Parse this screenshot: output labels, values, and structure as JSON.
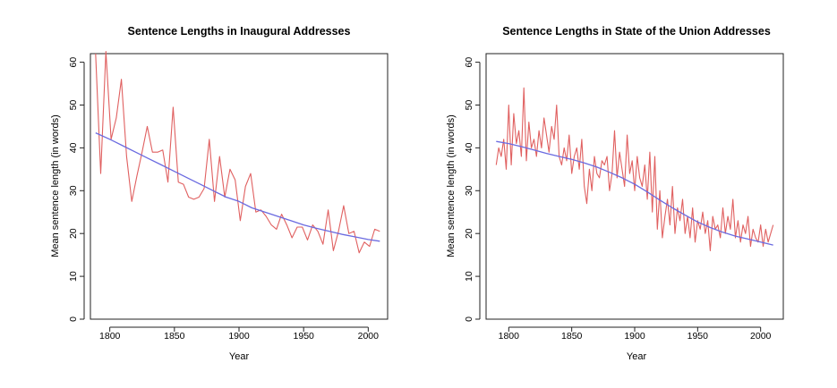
{
  "colors": {
    "raw_series": "#e06060",
    "trend": "#6a6ae0",
    "frame": "#222222",
    "background": "#ffffff"
  },
  "chart_data": [
    {
      "type": "line",
      "title": "Sentence Lengths in Inaugural Addresses",
      "xlabel": "Year",
      "ylabel": "Mean sentence length (in words)",
      "xlim": [
        1785,
        2015
      ],
      "ylim": [
        0,
        62
      ],
      "xticks": [
        1800,
        1850,
        1900,
        1950,
        2000
      ],
      "yticks": [
        0,
        10,
        20,
        30,
        40,
        50,
        60
      ],
      "grid": false,
      "legend": "none",
      "series": [
        {
          "x": [
            1789,
            1793,
            1797,
            1801,
            1805,
            1809,
            1813,
            1817,
            1821,
            1825,
            1829,
            1833,
            1837,
            1841,
            1845,
            1849,
            1853,
            1857,
            1861,
            1865,
            1869,
            1873,
            1877,
            1881,
            1885,
            1889,
            1893,
            1897,
            1901,
            1905,
            1909,
            1913,
            1917,
            1921,
            1925,
            1929,
            1933,
            1937,
            1941,
            1945,
            1949,
            1953,
            1957,
            1961,
            1965,
            1969,
            1973,
            1977,
            1981,
            1985,
            1989,
            1993,
            1997,
            2001,
            2005,
            2009
          ],
          "y": [
            62.0,
            34.0,
            62.5,
            42.0,
            47.0,
            56.0,
            38.0,
            27.5,
            33.5,
            39.0,
            45.0,
            39.0,
            39.0,
            39.5,
            32.0,
            49.5,
            32.0,
            31.5,
            28.5,
            28.0,
            28.5,
            30.5,
            42.0,
            27.5,
            38.0,
            28.5,
            35.0,
            32.5,
            23.0,
            31.0,
            34.0,
            25.0,
            25.5,
            24.0,
            22.0,
            21.0,
            24.5,
            22.0,
            19.0,
            21.5,
            21.5,
            18.5,
            22.0,
            20.5,
            17.5,
            25.5,
            16.0,
            20.5,
            26.5,
            20.0,
            20.5,
            15.5,
            18.0,
            17.0,
            21.0,
            20.5
          ]
        },
        {
          "x": [
            1789,
            1800,
            1810,
            1820,
            1830,
            1840,
            1850,
            1860,
            1870,
            1880,
            1890,
            1900,
            1910,
            1920,
            1930,
            1940,
            1950,
            1960,
            1970,
            1980,
            1990,
            2000,
            2009
          ],
          "y": [
            43.5,
            42.0,
            40.5,
            39.0,
            37.5,
            36.0,
            34.5,
            33.0,
            31.5,
            30.0,
            28.5,
            27.5,
            26.0,
            25.0,
            24.0,
            23.0,
            22.0,
            21.2,
            20.5,
            19.8,
            19.2,
            18.6,
            18.2
          ]
        }
      ]
    },
    {
      "type": "line",
      "title": "Sentence Lengths in State of the Union Addresses",
      "xlabel": "Year",
      "ylabel": "Mean sentence length (in words)",
      "xlim": [
        1782,
        2018
      ],
      "ylim": [
        0,
        62
      ],
      "xticks": [
        1800,
        1850,
        1900,
        1950,
        2000
      ],
      "yticks": [
        0,
        10,
        20,
        30,
        40,
        50,
        60
      ],
      "grid": false,
      "legend": "none",
      "series": [
        {
          "x": [
            1790,
            1792,
            1794,
            1796,
            1798,
            1800,
            1802,
            1804,
            1806,
            1808,
            1810,
            1812,
            1814,
            1816,
            1818,
            1820,
            1822,
            1824,
            1826,
            1828,
            1830,
            1832,
            1834,
            1836,
            1838,
            1840,
            1842,
            1844,
            1846,
            1848,
            1850,
            1852,
            1854,
            1856,
            1858,
            1860,
            1862,
            1864,
            1866,
            1868,
            1870,
            1872,
            1874,
            1876,
            1878,
            1880,
            1882,
            1884,
            1886,
            1888,
            1890,
            1892,
            1894,
            1896,
            1898,
            1900,
            1902,
            1904,
            1906,
            1908,
            1910,
            1912,
            1914,
            1916,
            1918,
            1920,
            1922,
            1924,
            1926,
            1928,
            1930,
            1932,
            1934,
            1936,
            1938,
            1940,
            1942,
            1944,
            1946,
            1948,
            1950,
            1952,
            1954,
            1956,
            1958,
            1960,
            1962,
            1964,
            1966,
            1968,
            1970,
            1972,
            1974,
            1976,
            1978,
            1980,
            1982,
            1984,
            1986,
            1988,
            1990,
            1992,
            1994,
            1996,
            1998,
            2000,
            2002,
            2004,
            2006,
            2008,
            2010
          ],
          "y": [
            36,
            40,
            38,
            42,
            35,
            50,
            36,
            48,
            41,
            44,
            38,
            54,
            37,
            46,
            40,
            42,
            38,
            44,
            40,
            47,
            43,
            39,
            45,
            42,
            50,
            38,
            36,
            40,
            37,
            43,
            34,
            38,
            40,
            35,
            42,
            31,
            27,
            35,
            30,
            38,
            34,
            33,
            37,
            36,
            38,
            30,
            34,
            44,
            33,
            39,
            35,
            31,
            43,
            34,
            37,
            30,
            38,
            33,
            31,
            36,
            28,
            39,
            25,
            38,
            21,
            30,
            19,
            24,
            28,
            22,
            31,
            20,
            26,
            23,
            28,
            20,
            24,
            19,
            26,
            18,
            23,
            21,
            25,
            20,
            23,
            16,
            24,
            21,
            22,
            19,
            26,
            20,
            24,
            21,
            28,
            19,
            23,
            18,
            22,
            20,
            24,
            17,
            21,
            19,
            18,
            22,
            17,
            21,
            18,
            20,
            22
          ]
        },
        {
          "x": [
            1790,
            1800,
            1810,
            1820,
            1830,
            1840,
            1850,
            1860,
            1870,
            1880,
            1890,
            1900,
            1910,
            1920,
            1930,
            1940,
            1950,
            1960,
            1970,
            1980,
            1990,
            2000,
            2010
          ],
          "y": [
            41.5,
            41.0,
            40.3,
            39.5,
            38.7,
            38.0,
            37.3,
            36.5,
            35.5,
            34.3,
            33.0,
            31.5,
            29.7,
            27.8,
            26.0,
            24.3,
            22.7,
            21.4,
            20.3,
            19.4,
            18.7,
            18.0,
            17.3
          ]
        }
      ]
    }
  ]
}
